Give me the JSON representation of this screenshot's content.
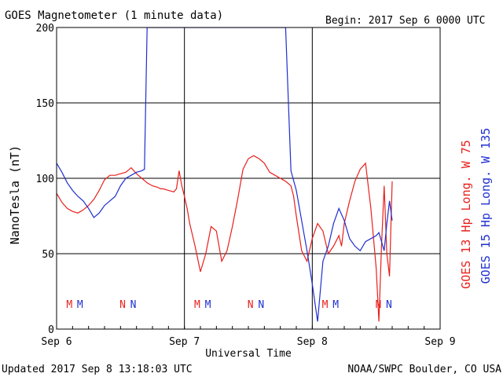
{
  "chart_data": {
    "type": "line",
    "title": "GOES Magnetometer (1 minute data)",
    "begin_text": "Begin:  2017 Sep 6 0000 UTC",
    "xlabel": "Universal Time",
    "ylabel": "NanoTesla (nT)",
    "x_ticks": [
      "Sep 6",
      "Sep 7",
      "Sep 8",
      "Sep 9"
    ],
    "y_ticks": [
      "0",
      "50",
      "100",
      "150",
      "200"
    ],
    "xlim": [
      0,
      72
    ],
    "ylim": [
      0,
      200
    ],
    "grid": true,
    "right_labels": [
      {
        "text": "GOES 13 Hp  Long. W 75",
        "color": "#e8201c"
      },
      {
        "text": "GOES 15 Hp  Long. W 135",
        "color": "#1f2fd0"
      }
    ],
    "markers": [
      {
        "label": "M",
        "x": 2.4,
        "color": "#e8201c"
      },
      {
        "label": "M",
        "x": 4.4,
        "color": "#1f2fd0"
      },
      {
        "label": "N",
        "x": 12.4,
        "color": "#e8201c"
      },
      {
        "label": "N",
        "x": 14.4,
        "color": "#1f2fd0"
      },
      {
        "label": "M",
        "x": 26.4,
        "color": "#e8201c"
      },
      {
        "label": "M",
        "x": 28.4,
        "color": "#1f2fd0"
      },
      {
        "label": "N",
        "x": 36.4,
        "color": "#e8201c"
      },
      {
        "label": "N",
        "x": 38.4,
        "color": "#1f2fd0"
      },
      {
        "label": "M",
        "x": 50.4,
        "color": "#e8201c"
      },
      {
        "label": "M",
        "x": 52.4,
        "color": "#1f2fd0"
      },
      {
        "label": "N",
        "x": 60.4,
        "color": "#e8201c"
      },
      {
        "label": "N",
        "x": 62.4,
        "color": "#1f2fd0"
      }
    ],
    "series": [
      {
        "name": "GOES 13 Hp",
        "color": "#e8201c",
        "x": [
          0,
          1,
          2,
          3,
          4,
          5,
          6,
          7,
          8,
          9,
          10,
          11,
          12,
          13,
          14,
          15,
          16,
          17,
          18,
          19,
          19.5,
          20,
          21,
          22,
          22.5,
          23,
          23.5,
          24,
          24.5,
          25,
          26,
          27,
          28,
          29,
          30,
          31,
          32,
          33,
          34,
          35,
          36,
          37,
          38,
          39,
          40,
          41,
          42,
          43,
          44,
          44.5,
          45,
          46,
          47,
          48,
          49,
          50,
          51,
          52,
          53,
          53.5,
          54,
          55,
          56,
          57,
          58,
          59,
          60,
          60.5,
          61,
          61.5,
          62,
          62.5,
          63
        ],
        "y": [
          90,
          84,
          80,
          78,
          77,
          79,
          82,
          86,
          92,
          99,
          102,
          102,
          103,
          104,
          107,
          103,
          100,
          97,
          95,
          94,
          93,
          93,
          92,
          91,
          93,
          105,
          95,
          88,
          80,
          70,
          55,
          38,
          50,
          68,
          65,
          45,
          52,
          68,
          86,
          106,
          113,
          115,
          113,
          110,
          104,
          102,
          100,
          98,
          95,
          88,
          75,
          52,
          45,
          60,
          70,
          65,
          50,
          55,
          62,
          55,
          70,
          85,
          98,
          106,
          110,
          80,
          40,
          5,
          55,
          95,
          50,
          35,
          98
        ]
      },
      {
        "name": "GOES 15 Hp",
        "color": "#1f2fd0",
        "x": [
          0,
          1,
          2,
          3,
          4,
          5,
          6,
          7,
          8,
          9,
          10,
          11,
          12,
          13,
          14,
          15,
          16,
          16.5,
          17,
          17.5,
          18,
          19,
          20,
          21,
          22,
          23,
          24,
          25,
          26,
          27,
          28,
          29,
          30,
          31,
          32,
          33,
          34,
          35,
          36,
          37,
          38,
          39,
          40,
          41,
          42,
          43,
          44,
          45,
          46,
          47,
          48,
          49,
          50,
          51,
          52,
          53,
          54,
          55,
          56,
          57,
          58,
          59,
          60,
          60.5,
          61,
          61.5,
          62,
          62.5,
          63
        ],
        "y": [
          110,
          104,
          97,
          92,
          88,
          85,
          80,
          74,
          77,
          82,
          85,
          88,
          95,
          100,
          102,
          104,
          105,
          106,
          200,
          200,
          200,
          200,
          200,
          200,
          200,
          200,
          200,
          200,
          200,
          200,
          200,
          200,
          200,
          200,
          200,
          200,
          200,
          200,
          200,
          200,
          200,
          200,
          200,
          200,
          200,
          200,
          105,
          92,
          72,
          52,
          30,
          5,
          45,
          55,
          70,
          80,
          72,
          60,
          55,
          52,
          58,
          60,
          62,
          64,
          58,
          52,
          70,
          85,
          72
        ]
      }
    ]
  },
  "footer": {
    "updated": "Updated 2017 Sep  8 13:18:03 UTC",
    "source": "NOAA/SWPC Boulder, CO USA"
  }
}
